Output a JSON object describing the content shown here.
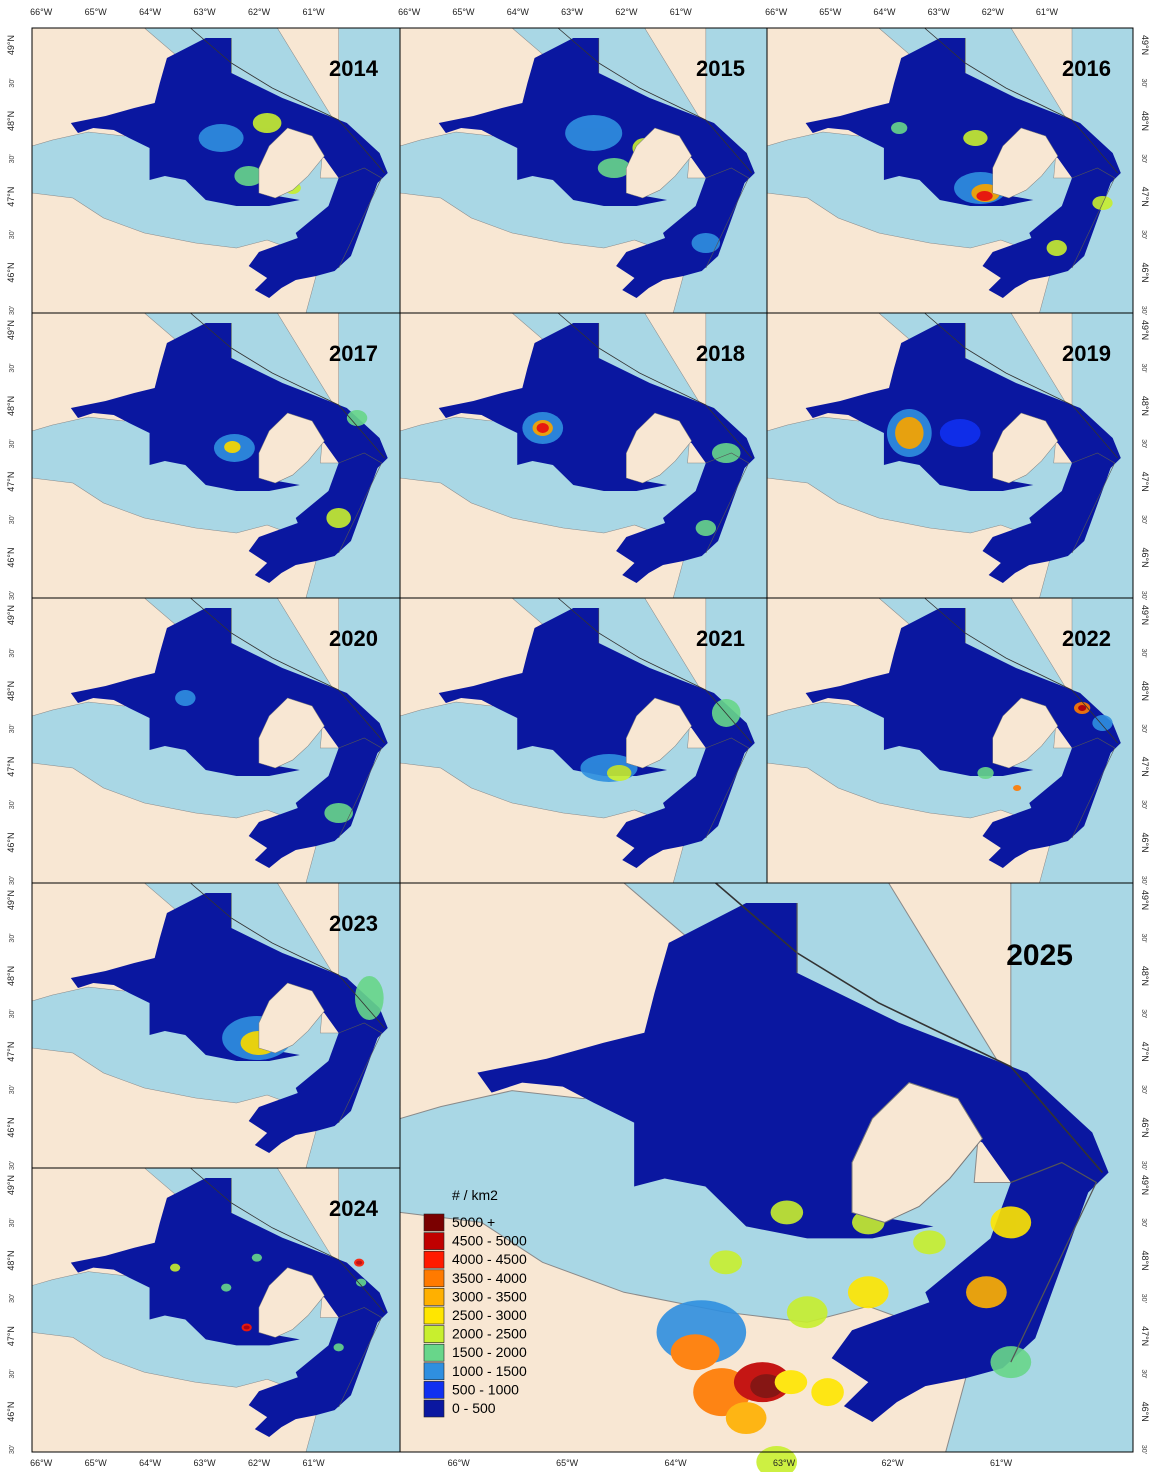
{
  "figure": {
    "lon_labels_top": [
      "66°W",
      "65°W",
      "64°W",
      "63°W",
      "62°W",
      "61°W"
    ],
    "lon_labels_bottom_small": [
      "66°W",
      "65°W",
      "64°W",
      "63°W",
      "62°W",
      "61°W"
    ],
    "lon_labels_bottom_large": [
      "66°W",
      "65°W",
      "64°W",
      "63°W",
      "62°W",
      "61°W"
    ],
    "lat_labels": [
      "49°N",
      "30'",
      "48°N",
      "30'",
      "47°N",
      "30'",
      "46°N",
      "30'"
    ],
    "panels": [
      {
        "year": "2014"
      },
      {
        "year": "2015"
      },
      {
        "year": "2016"
      },
      {
        "year": "2017"
      },
      {
        "year": "2018"
      },
      {
        "year": "2019"
      },
      {
        "year": "2020"
      },
      {
        "year": "2021"
      },
      {
        "year": "2022"
      },
      {
        "year": "2023"
      },
      {
        "year": "2024"
      },
      {
        "year": "2025"
      }
    ],
    "colors": {
      "land": "#f8e7d3",
      "water": "#a9d7e5",
      "survey_base": "#0a17a0"
    }
  },
  "legend": {
    "title": "# / km2",
    "classes": [
      {
        "label": "5000 +",
        "color": "#7a0000"
      },
      {
        "label": "4500 - 5000",
        "color": "#c00000"
      },
      {
        "label": "4000 - 4500",
        "color": "#ff1a00"
      },
      {
        "label": "3500 - 4000",
        "color": "#ff7a00"
      },
      {
        "label": "3000 - 3500",
        "color": "#ffb000"
      },
      {
        "label": "2500 - 3000",
        "color": "#ffe600"
      },
      {
        "label": "2000 - 2500",
        "color": "#c8ef2e"
      },
      {
        "label": "1500 - 2000",
        "color": "#68d68a"
      },
      {
        "label": "1000 - 1500",
        "color": "#2f8fe0"
      },
      {
        "label": "500 - 1000",
        "color": "#1030f0"
      },
      {
        "label": "0 - 500",
        "color": "#0a17a0"
      }
    ]
  }
}
